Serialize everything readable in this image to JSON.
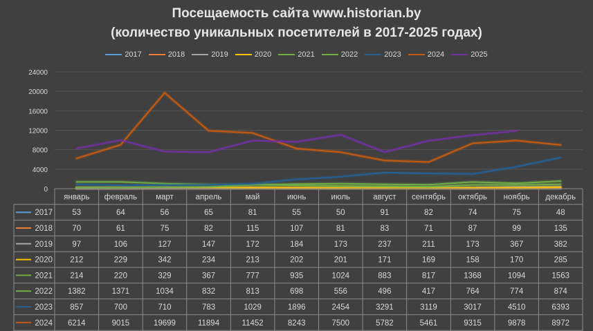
{
  "chart_data": {
    "type": "line",
    "title": "Посещаемость сайта www.historian.by",
    "subtitle": "(количество уникальных посетителей в 2017-2025 годах)",
    "categories": [
      "январь",
      "февраль",
      "март",
      "апрель",
      "май",
      "июнь",
      "июль",
      "август",
      "сентябрь",
      "октябрь",
      "ноябрь",
      "декабрь"
    ],
    "yticks": [
      "0",
      "4000",
      "8000",
      "12000",
      "16000",
      "20000",
      "24000"
    ],
    "ylim": [
      0,
      24000
    ],
    "legend_position": "top",
    "series": [
      {
        "name": "2017",
        "color": "#5b9bd5",
        "values": [
          53,
          64,
          56,
          65,
          81,
          55,
          50,
          91,
          82,
          74,
          75,
          48
        ]
      },
      {
        "name": "2018",
        "color": "#ed7d31",
        "values": [
          70,
          61,
          75,
          82,
          115,
          107,
          81,
          83,
          71,
          87,
          99,
          135
        ]
      },
      {
        "name": "2019",
        "color": "#a5a5a5",
        "values": [
          97,
          106,
          127,
          147,
          172,
          184,
          173,
          237,
          211,
          173,
          367,
          382
        ]
      },
      {
        "name": "2020",
        "color": "#ffc000",
        "values": [
          212,
          229,
          342,
          234,
          213,
          202,
          201,
          171,
          169,
          158,
          170,
          285
        ]
      },
      {
        "name": "2021",
        "color": "#70ad47",
        "values": [
          214,
          220,
          329,
          367,
          777,
          935,
          1024,
          883,
          817,
          1368,
          1094,
          1563
        ]
      },
      {
        "name": "2022",
        "color": "#70ad47",
        "values": [
          1382,
          1371,
          1034,
          832,
          813,
          698,
          556,
          496,
          417,
          764,
          774,
          874
        ]
      },
      {
        "name": "2023",
        "color": "#255e91",
        "values": [
          857,
          700,
          710,
          783,
          1029,
          1896,
          2454,
          3291,
          3119,
          3017,
          4510,
          6393
        ]
      },
      {
        "name": "2024",
        "color": "#c55a11",
        "values": [
          6214,
          9015,
          19699,
          11894,
          11452,
          8243,
          7500,
          5782,
          5461,
          9315,
          9878,
          8972
        ]
      },
      {
        "name": "2025",
        "color": "#7030a0",
        "values": [
          8262,
          9975,
          7609,
          7492,
          9876,
          9629,
          11063,
          7519,
          9835,
          10998,
          11905,
          null
        ]
      }
    ]
  }
}
